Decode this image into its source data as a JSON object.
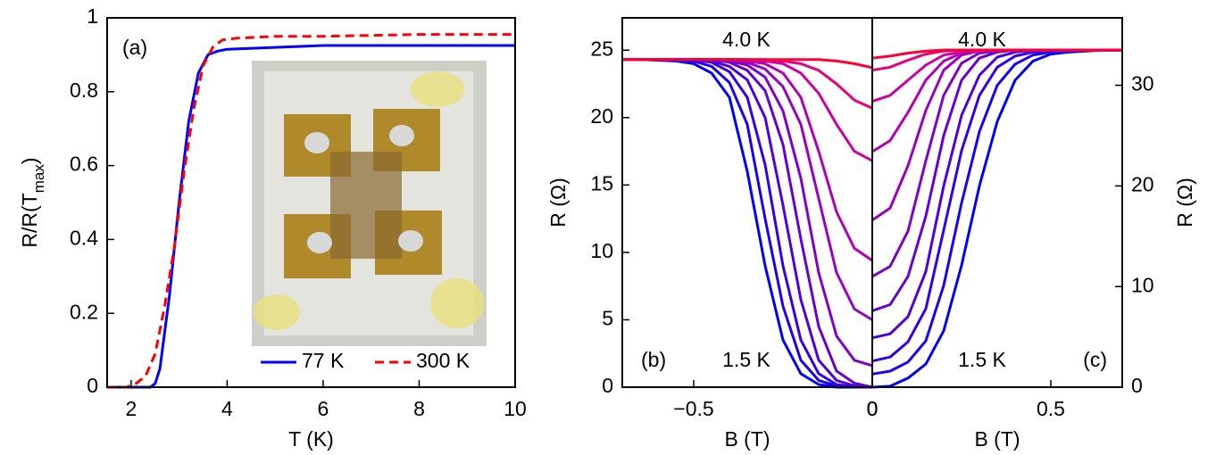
{
  "chart_data": [
    {
      "type": "line",
      "xlabel": "T (K)",
      "ylabel": [
        "R/R(T",
        "max",
        ")"
      ],
      "xlim": [
        1.5,
        10
      ],
      "xticks": [
        2,
        4,
        6,
        8,
        10
      ],
      "ylim": [
        0,
        1
      ],
      "yticks": [
        0,
        0.2,
        0.4,
        0.6,
        0.8,
        1
      ],
      "legend": "lower right",
      "annotations": [
        {
          "text": "(a)",
          "color": "#000000"
        }
      ],
      "series": [
        {
          "name": "77 K",
          "color": "#0000ff",
          "linestyle": "solid",
          "x": [
            1.5,
            2,
            2.4,
            2.5,
            2.6,
            2.8,
            3,
            3.2,
            3.4,
            3.6,
            3.8,
            4,
            5,
            6,
            8,
            10
          ],
          "values": [
            0,
            0,
            0,
            0.01,
            0.05,
            0.25,
            0.5,
            0.72,
            0.85,
            0.9,
            0.91,
            0.915,
            0.92,
            0.925,
            0.925,
            0.925
          ]
        },
        {
          "name": "300 K",
          "color": "#ff0000",
          "linestyle": "dashed",
          "x": [
            1.5,
            1.9,
            2.1,
            2.3,
            2.5,
            2.7,
            2.9,
            3.1,
            3.3,
            3.5,
            3.7,
            3.9,
            4.2,
            5,
            6,
            8,
            10
          ],
          "values": [
            0,
            0,
            0.01,
            0.03,
            0.09,
            0.22,
            0.38,
            0.58,
            0.75,
            0.87,
            0.92,
            0.94,
            0.945,
            0.95,
            0.95,
            0.955,
            0.955
          ]
        }
      ]
    },
    {
      "type": "line",
      "xlabel": "B (T)",
      "ylabel": "R (Ω)",
      "xlim": [
        -0.7,
        0
      ],
      "xticks": [
        {
          "value": -0.5,
          "label": "−0.5"
        },
        0
      ],
      "ylim": [
        0,
        27.4
      ],
      "yticks": [
        0,
        5,
        10,
        15,
        20,
        25
      ],
      "annotations": [
        {
          "text": "(b)",
          "color": "#000000"
        },
        {
          "text": "1.5 K",
          "color": "#0000ff"
        },
        {
          "text": "4.0 K",
          "color": "#ff0000"
        }
      ],
      "x": [
        -0.7,
        -0.65,
        -0.55,
        -0.5,
        -0.45,
        -0.4,
        -0.35,
        -0.3,
        -0.25,
        -0.2,
        -0.15,
        -0.1,
        -0.05,
        0
      ],
      "series": [
        {
          "color": "#0000ff",
          "values": [
            24.3,
            24.3,
            24.2,
            24.0,
            23.3,
            21.5,
            16,
            9,
            3.5,
            1,
            0.2,
            0,
            0,
            0
          ]
        },
        {
          "color": "#1a00f5",
          "values": [
            24.3,
            24.3,
            24.3,
            24.2,
            23.8,
            22.6,
            19.5,
            12.5,
            6,
            2,
            0.5,
            0.1,
            0,
            0
          ]
        },
        {
          "color": "#3300eb",
          "values": [
            24.3,
            24.3,
            24.3,
            24.3,
            24.1,
            23.4,
            21.5,
            16.5,
            9,
            3.5,
            1,
            0.2,
            0,
            0
          ]
        },
        {
          "color": "#4d00e0",
          "values": [
            24.3,
            24.3,
            24.3,
            24.3,
            24.2,
            23.8,
            22.8,
            20,
            13.5,
            6.5,
            2,
            0.5,
            0.1,
            0
          ]
        },
        {
          "color": "#6600d6",
          "values": [
            24.3,
            24.3,
            24.3,
            24.3,
            24.3,
            24.1,
            23.5,
            22,
            18,
            11,
            4.5,
            1.2,
            0.3,
            0
          ]
        },
        {
          "color": "#8000cc",
          "values": [
            24.3,
            24.3,
            24.3,
            24.3,
            24.3,
            24.2,
            23.9,
            23,
            20.5,
            15.5,
            8.5,
            3.8,
            2,
            1.6
          ]
        },
        {
          "color": "#9900c2",
          "values": [
            24.3,
            24.3,
            24.3,
            24.3,
            24.3,
            24.3,
            24.1,
            23.6,
            22.3,
            19.5,
            14,
            8.5,
            5.8,
            5
          ]
        },
        {
          "color": "#b300b8",
          "values": [
            24.3,
            24.3,
            24.3,
            24.3,
            24.3,
            24.3,
            24.2,
            24,
            23.3,
            21.5,
            17.5,
            13,
            10.3,
            9.4
          ]
        },
        {
          "color": "#cc00a3",
          "values": [
            24.3,
            24.3,
            24.3,
            24.3,
            24.3,
            24.3,
            24.3,
            24.2,
            24,
            23.3,
            21.8,
            19.5,
            17.5,
            16.8
          ]
        },
        {
          "color": "#e6007a",
          "values": [
            24.3,
            24.3,
            24.3,
            24.3,
            24.3,
            24.3,
            24.3,
            24.3,
            24.2,
            24,
            23.5,
            22.5,
            21.3,
            20.7
          ]
        },
        {
          "color": "#ff0033",
          "values": [
            24.3,
            24.3,
            24.3,
            24.3,
            24.3,
            24.3,
            24.3,
            24.3,
            24.3,
            24.3,
            24.3,
            24.2,
            24,
            23.7
          ]
        }
      ]
    },
    {
      "type": "line",
      "xlabel": "B (T)",
      "y2label": "R (Ω)",
      "xlim": [
        0,
        0.7
      ],
      "xticks": [
        0,
        0.5
      ],
      "y2lim": [
        0,
        36.7
      ],
      "y2ticks": [
        0,
        10,
        20,
        30
      ],
      "annotations": [
        {
          "text": "4.0 K",
          "color": "#ff0000"
        },
        {
          "text": "1.5 K",
          "color": "#0000ff"
        },
        {
          "text": "(c)",
          "color": "#000000"
        }
      ],
      "x": [
        0,
        0.05,
        0.1,
        0.15,
        0.2,
        0.25,
        0.3,
        0.35,
        0.4,
        0.45,
        0.5,
        0.55,
        0.65,
        0.7
      ],
      "series": [
        {
          "axis": "y2",
          "color": "#0000ff",
          "values": [
            0,
            0.1,
            0.9,
            2.3,
            5.6,
            12.1,
            20,
            26.4,
            30.5,
            32.4,
            33.1,
            33.3,
            33.5,
            33.5
          ]
        },
        {
          "axis": "y2",
          "color": "#1a00f5",
          "values": [
            1.3,
            1.6,
            2.5,
            4.6,
            10.1,
            18.3,
            25.4,
            30,
            32.1,
            33,
            33.3,
            33.4,
            33.5,
            33.5
          ]
        },
        {
          "axis": "y2",
          "color": "#3300eb",
          "values": [
            2.6,
            3,
            4.5,
            7.8,
            15.6,
            23.5,
            29,
            31.8,
            32.9,
            33.3,
            33.4,
            33.5,
            33.5,
            33.5
          ]
        },
        {
          "axis": "y2",
          "color": "#4d00e0",
          "values": [
            4.9,
            5.3,
            7,
            11.5,
            20,
            27,
            31,
            32.8,
            33.3,
            33.5,
            33.5,
            33.5,
            33.5,
            33.5
          ]
        },
        {
          "axis": "y2",
          "color": "#6600d6",
          "values": [
            7.6,
            8.2,
            11,
            17,
            25,
            30.5,
            32.7,
            33.3,
            33.5,
            33.5,
            33.5,
            33.5,
            33.5,
            33.5
          ]
        },
        {
          "axis": "y2",
          "color": "#8000cc",
          "values": [
            11,
            12,
            15.5,
            22.5,
            29,
            32.2,
            33.2,
            33.4,
            33.5,
            33.5,
            33.5,
            33.5,
            33.5,
            33.5
          ]
        },
        {
          "axis": "y2",
          "color": "#9900c2",
          "values": [
            16.6,
            17.8,
            22,
            27.5,
            31.5,
            33,
            33.4,
            33.5,
            33.5,
            33.5,
            33.5,
            33.5,
            33.5,
            33.5
          ]
        },
        {
          "axis": "y2",
          "color": "#b300b8",
          "values": [
            23.4,
            24.5,
            27.3,
            30.5,
            32.4,
            33.2,
            33.4,
            33.5,
            33.5,
            33.5,
            33.5,
            33.5,
            33.5,
            33.5
          ]
        },
        {
          "axis": "y2",
          "color": "#cc00a3",
          "values": [
            28.4,
            29,
            30.5,
            32,
            33,
            33.3,
            33.5,
            33.5,
            33.5,
            33.5,
            33.5,
            33.5,
            33.5,
            33.5
          ]
        },
        {
          "axis": "y2",
          "color": "#e6007a",
          "values": [
            31.5,
            31.8,
            32.5,
            33.1,
            33.4,
            33.5,
            33.5,
            33.5,
            33.5,
            33.5,
            33.5,
            33.5,
            33.5,
            33.5
          ]
        },
        {
          "axis": "y2",
          "color": "#ff0033",
          "values": [
            32.7,
            32.9,
            33.2,
            33.4,
            33.5,
            33.5,
            33.5,
            33.5,
            33.5,
            33.5,
            33.5,
            33.5,
            33.5,
            33.5
          ]
        }
      ]
    }
  ]
}
